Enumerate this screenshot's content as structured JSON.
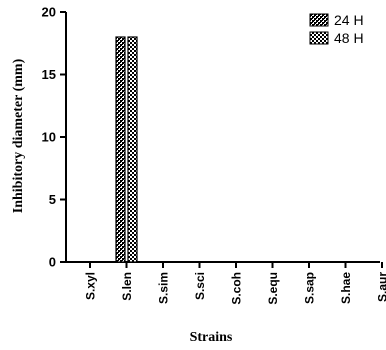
{
  "chart_data": {
    "type": "bar",
    "title": "",
    "xlabel": "Strains",
    "ylabel": "Inhibitory diameter (mm)",
    "categories": [
      "S.xyl",
      "S.len",
      "S.sim",
      "S.sci",
      "S.coh",
      "S.equ",
      "S.sap",
      "S.hae",
      "S.aur"
    ],
    "series": [
      {
        "name": "24 H",
        "values": [
          0,
          18,
          0,
          0,
          0,
          0,
          0,
          0,
          0
        ],
        "pattern": "dense-checker"
      },
      {
        "name": "48 H",
        "values": [
          0,
          18,
          0,
          0,
          0,
          0,
          0,
          0,
          0
        ],
        "pattern": "open-checker"
      }
    ],
    "ylim": [
      0,
      20
    ],
    "yticks": [
      "0",
      "5",
      "10",
      "15",
      "20"
    ],
    "grid": false,
    "legend_position": "top-right",
    "colors": {
      "axis": "#000000",
      "bar_stroke": "#000000",
      "bar_fill_dark": "#000000",
      "bar_fill_light": "#ffffff"
    }
  }
}
